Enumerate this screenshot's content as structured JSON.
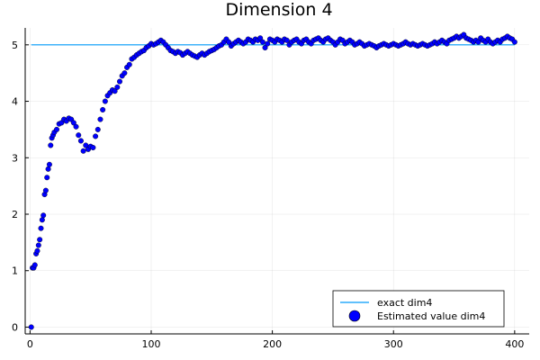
{
  "chart_data": {
    "type": "scatter",
    "title": "Dimension 4",
    "xlabel": "",
    "ylabel": "",
    "xlim": [
      -4,
      412
    ],
    "ylim": [
      -0.12,
      5.3
    ],
    "xticks": [
      0,
      100,
      200,
      300,
      400
    ],
    "yticks": [
      0,
      1,
      2,
      3,
      4,
      5
    ],
    "grid": true,
    "legend_position": "bottom-right",
    "series": [
      {
        "name": "exact dim4",
        "kind": "line",
        "color": "#009af9",
        "points": [
          [
            1,
            5
          ],
          [
            400,
            5
          ]
        ]
      },
      {
        "name": "Estimated value dim4",
        "kind": "scatter",
        "color": "#0000ff",
        "points": [
          [
            1,
            0.0
          ],
          [
            2,
            1.05
          ],
          [
            3,
            1.05
          ],
          [
            4,
            1.1
          ],
          [
            5,
            1.3
          ],
          [
            6,
            1.35
          ],
          [
            7,
            1.45
          ],
          [
            8,
            1.55
          ],
          [
            9,
            1.75
          ],
          [
            10,
            1.9
          ],
          [
            11,
            1.98
          ],
          [
            12,
            2.35
          ],
          [
            13,
            2.42
          ],
          [
            14,
            2.65
          ],
          [
            15,
            2.8
          ],
          [
            16,
            2.88
          ],
          [
            17,
            3.22
          ],
          [
            18,
            3.35
          ],
          [
            19,
            3.4
          ],
          [
            20,
            3.45
          ],
          [
            22,
            3.5
          ],
          [
            24,
            3.6
          ],
          [
            26,
            3.62
          ],
          [
            28,
            3.68
          ],
          [
            30,
            3.65
          ],
          [
            32,
            3.7
          ],
          [
            34,
            3.68
          ],
          [
            36,
            3.62
          ],
          [
            38,
            3.55
          ],
          [
            40,
            3.4
          ],
          [
            42,
            3.3
          ],
          [
            44,
            3.12
          ],
          [
            46,
            3.22
          ],
          [
            48,
            3.15
          ],
          [
            50,
            3.2
          ],
          [
            52,
            3.18
          ],
          [
            54,
            3.38
          ],
          [
            56,
            3.5
          ],
          [
            58,
            3.68
          ],
          [
            60,
            3.85
          ],
          [
            62,
            4.0
          ],
          [
            64,
            4.1
          ],
          [
            66,
            4.15
          ],
          [
            68,
            4.2
          ],
          [
            70,
            4.18
          ],
          [
            72,
            4.25
          ],
          [
            74,
            4.35
          ],
          [
            76,
            4.45
          ],
          [
            78,
            4.5
          ],
          [
            80,
            4.6
          ],
          [
            82,
            4.65
          ],
          [
            84,
            4.75
          ],
          [
            86,
            4.78
          ],
          [
            88,
            4.82
          ],
          [
            90,
            4.85
          ],
          [
            92,
            4.88
          ],
          [
            94,
            4.9
          ],
          [
            96,
            4.95
          ],
          [
            98,
            4.98
          ],
          [
            100,
            5.02
          ],
          [
            102,
            5.0
          ],
          [
            104,
            5.02
          ],
          [
            106,
            5.05
          ],
          [
            108,
            5.08
          ],
          [
            110,
            5.05
          ],
          [
            112,
            5.0
          ],
          [
            114,
            4.95
          ],
          [
            116,
            4.9
          ],
          [
            118,
            4.88
          ],
          [
            120,
            4.85
          ],
          [
            122,
            4.88
          ],
          [
            124,
            4.86
          ],
          [
            126,
            4.82
          ],
          [
            128,
            4.85
          ],
          [
            130,
            4.88
          ],
          [
            132,
            4.85
          ],
          [
            134,
            4.82
          ],
          [
            136,
            4.8
          ],
          [
            138,
            4.78
          ],
          [
            140,
            4.82
          ],
          [
            142,
            4.85
          ],
          [
            144,
            4.82
          ],
          [
            146,
            4.85
          ],
          [
            148,
            4.88
          ],
          [
            150,
            4.9
          ],
          [
            152,
            4.92
          ],
          [
            154,
            4.95
          ],
          [
            156,
            4.98
          ],
          [
            158,
            5.0
          ],
          [
            160,
            5.05
          ],
          [
            162,
            5.1
          ],
          [
            164,
            5.05
          ],
          [
            166,
            4.98
          ],
          [
            168,
            5.02
          ],
          [
            170,
            5.05
          ],
          [
            172,
            5.08
          ],
          [
            174,
            5.05
          ],
          [
            176,
            5.02
          ],
          [
            178,
            5.05
          ],
          [
            180,
            5.1
          ],
          [
            182,
            5.08
          ],
          [
            184,
            5.05
          ],
          [
            186,
            5.1
          ],
          [
            188,
            5.08
          ],
          [
            190,
            5.12
          ],
          [
            192,
            5.05
          ],
          [
            194,
            4.95
          ],
          [
            196,
            5.02
          ],
          [
            198,
            5.1
          ],
          [
            200,
            5.08
          ],
          [
            202,
            5.05
          ],
          [
            204,
            5.1
          ],
          [
            206,
            5.08
          ],
          [
            208,
            5.05
          ],
          [
            210,
            5.1
          ],
          [
            212,
            5.08
          ],
          [
            214,
            5.0
          ],
          [
            216,
            5.05
          ],
          [
            218,
            5.08
          ],
          [
            220,
            5.1
          ],
          [
            222,
            5.05
          ],
          [
            224,
            5.02
          ],
          [
            226,
            5.08
          ],
          [
            228,
            5.1
          ],
          [
            230,
            5.05
          ],
          [
            232,
            5.02
          ],
          [
            234,
            5.08
          ],
          [
            236,
            5.1
          ],
          [
            238,
            5.12
          ],
          [
            240,
            5.08
          ],
          [
            242,
            5.05
          ],
          [
            244,
            5.1
          ],
          [
            246,
            5.12
          ],
          [
            248,
            5.08
          ],
          [
            250,
            5.05
          ],
          [
            252,
            5.0
          ],
          [
            254,
            5.05
          ],
          [
            256,
            5.1
          ],
          [
            258,
            5.08
          ],
          [
            260,
            5.02
          ],
          [
            262,
            5.05
          ],
          [
            264,
            5.08
          ],
          [
            266,
            5.05
          ],
          [
            268,
            5.0
          ],
          [
            270,
            5.02
          ],
          [
            272,
            5.05
          ],
          [
            274,
            5.02
          ],
          [
            276,
            4.98
          ],
          [
            278,
            5.0
          ],
          [
            280,
            5.02
          ],
          [
            282,
            5.0
          ],
          [
            284,
            4.98
          ],
          [
            286,
            4.95
          ],
          [
            288,
            4.98
          ],
          [
            290,
            5.0
          ],
          [
            292,
            5.02
          ],
          [
            294,
            5.0
          ],
          [
            296,
            4.98
          ],
          [
            298,
            5.0
          ],
          [
            300,
            5.02
          ],
          [
            302,
            5.0
          ],
          [
            304,
            4.98
          ],
          [
            306,
            5.0
          ],
          [
            308,
            5.02
          ],
          [
            310,
            5.05
          ],
          [
            312,
            5.02
          ],
          [
            314,
            5.0
          ],
          [
            316,
            5.02
          ],
          [
            318,
            5.0
          ],
          [
            320,
            4.98
          ],
          [
            322,
            5.0
          ],
          [
            324,
            5.02
          ],
          [
            326,
            5.0
          ],
          [
            328,
            4.98
          ],
          [
            330,
            5.0
          ],
          [
            332,
            5.02
          ],
          [
            334,
            5.05
          ],
          [
            336,
            5.02
          ],
          [
            338,
            5.05
          ],
          [
            340,
            5.08
          ],
          [
            342,
            5.05
          ],
          [
            344,
            5.02
          ],
          [
            346,
            5.08
          ],
          [
            348,
            5.1
          ],
          [
            350,
            5.12
          ],
          [
            352,
            5.15
          ],
          [
            354,
            5.12
          ],
          [
            356,
            5.15
          ],
          [
            358,
            5.18
          ],
          [
            360,
            5.12
          ],
          [
            362,
            5.1
          ],
          [
            364,
            5.08
          ],
          [
            366,
            5.05
          ],
          [
            368,
            5.08
          ],
          [
            370,
            5.05
          ],
          [
            372,
            5.12
          ],
          [
            374,
            5.08
          ],
          [
            376,
            5.05
          ],
          [
            378,
            5.1
          ],
          [
            380,
            5.05
          ],
          [
            382,
            5.02
          ],
          [
            384,
            5.05
          ],
          [
            386,
            5.08
          ],
          [
            388,
            5.05
          ],
          [
            390,
            5.1
          ],
          [
            392,
            5.12
          ],
          [
            394,
            5.15
          ],
          [
            396,
            5.12
          ],
          [
            398,
            5.1
          ],
          [
            400,
            5.05
          ]
        ]
      }
    ]
  }
}
